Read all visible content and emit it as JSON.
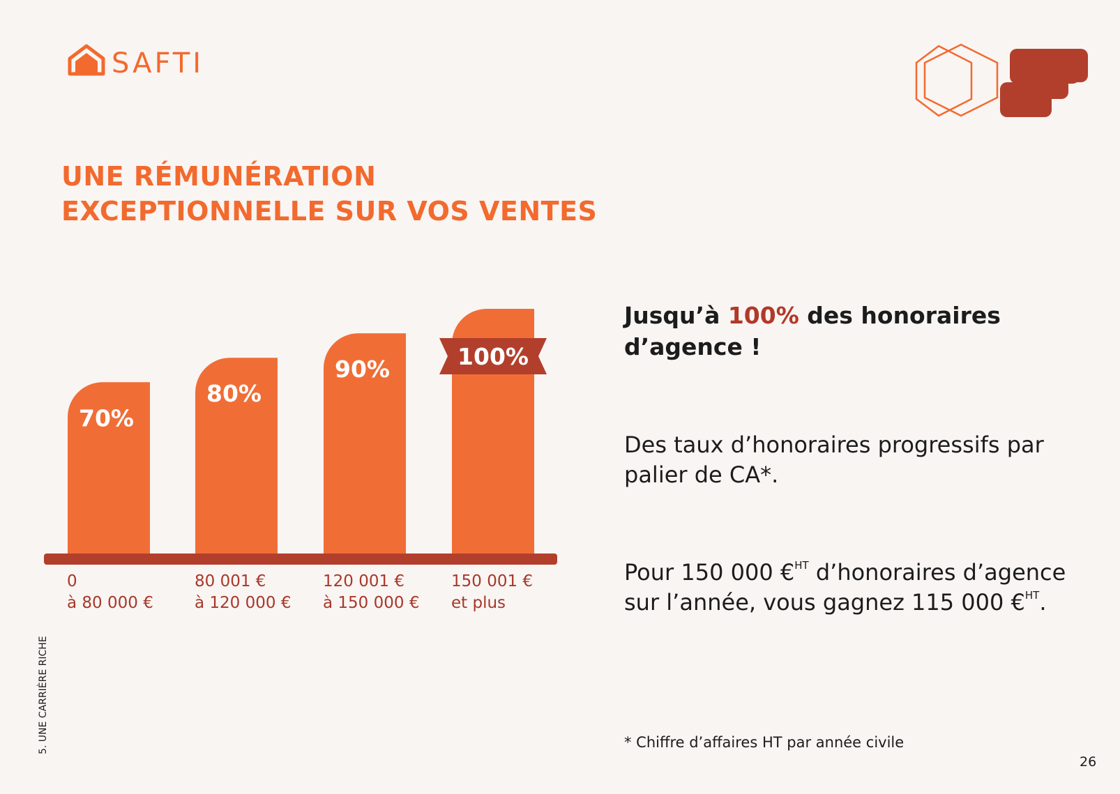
{
  "logo": "SAFTI",
  "title": [
    "UNE RÉMUNÉRATION",
    "EXCEPTIONNELLE SUR VOS VENTES"
  ],
  "chart_data": {
    "type": "bar",
    "categories": [
      [
        "0",
        "à 80 000 €"
      ],
      [
        "80 001 €",
        "à 120 000 €"
      ],
      [
        "120 001 €",
        "à 150 000 €"
      ],
      [
        "150 001 €",
        "et plus"
      ]
    ],
    "values": [
      70,
      80,
      90,
      100
    ],
    "value_labels": [
      "70%",
      "80%",
      "90%",
      "100%"
    ],
    "color": "#f06e36"
  },
  "heading": [
    "Jusqu’à ",
    "100%",
    " des honoraires",
    "d’agence !"
  ],
  "paragraph_2": [
    "Des taux d’honoraires progressifs par",
    "palier de CA*."
  ],
  "paragraph_3": [
    "Pour 150 000 €",
    "HT",
    " d’honoraires d’agence",
    "sur l’année, vous gagnez 115 000 €",
    "HT",
    "."
  ],
  "footnote": "* Chiffre d’affaires HT par année civile",
  "section": "5. UNE CARRIÈRE RICHE",
  "page_number": "26"
}
